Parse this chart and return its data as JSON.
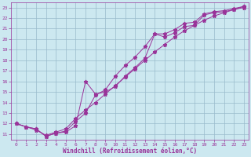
{
  "xlabel": "Windchill (Refroidissement éolien,°C)",
  "bg_color": "#cce8f0",
  "grid_color": "#99bbcc",
  "line_color": "#993399",
  "series1_x": [
    0,
    1,
    2,
    3,
    4,
    5,
    6,
    7,
    8,
    9,
    10,
    11,
    12,
    13,
    14,
    15,
    16,
    17,
    18,
    19,
    20,
    21,
    22,
    23
  ],
  "series1_y": [
    12.0,
    11.7,
    11.5,
    10.8,
    11.1,
    11.2,
    11.8,
    16.0,
    14.8,
    15.0,
    15.5,
    16.5,
    17.3,
    18.2,
    20.5,
    20.2,
    20.6,
    21.2,
    21.3,
    22.3,
    22.5,
    22.6,
    22.8,
    23.0
  ],
  "series2_x": [
    0,
    1,
    2,
    3,
    4,
    5,
    6,
    7,
    8,
    9,
    10,
    11,
    12,
    13,
    14,
    15,
    16,
    17,
    18,
    19,
    20,
    21,
    22,
    23
  ],
  "series2_y": [
    12.0,
    11.7,
    11.5,
    10.8,
    11.1,
    11.3,
    12.2,
    13.0,
    14.7,
    15.2,
    16.5,
    17.5,
    18.3,
    19.3,
    20.5,
    20.5,
    20.9,
    21.5,
    21.6,
    22.4,
    22.6,
    22.7,
    22.9,
    23.1
  ],
  "series3_x": [
    0,
    1,
    2,
    3,
    4,
    5,
    6,
    7,
    8,
    9,
    10,
    11,
    12,
    13,
    14,
    15,
    16,
    17,
    18,
    19,
    20,
    21,
    22,
    23
  ],
  "series3_y": [
    12.0,
    11.7,
    11.4,
    10.9,
    11.2,
    11.5,
    12.5,
    13.3,
    14.0,
    14.8,
    15.6,
    16.4,
    17.2,
    18.0,
    18.8,
    19.5,
    20.2,
    20.8,
    21.3,
    21.8,
    22.2,
    22.5,
    22.8,
    23.1
  ],
  "ylim": [
    11,
    23
  ],
  "xlim": [
    0,
    23
  ],
  "yticks": [
    11,
    12,
    13,
    14,
    15,
    16,
    17,
    18,
    19,
    20,
    21,
    22,
    23
  ],
  "xticks": [
    0,
    1,
    2,
    3,
    4,
    5,
    6,
    7,
    8,
    9,
    10,
    11,
    12,
    13,
    14,
    15,
    16,
    17,
    18,
    19,
    20,
    21,
    22,
    23
  ],
  "marker": "*",
  "linewidth": 0.7,
  "markersize": 3.5
}
